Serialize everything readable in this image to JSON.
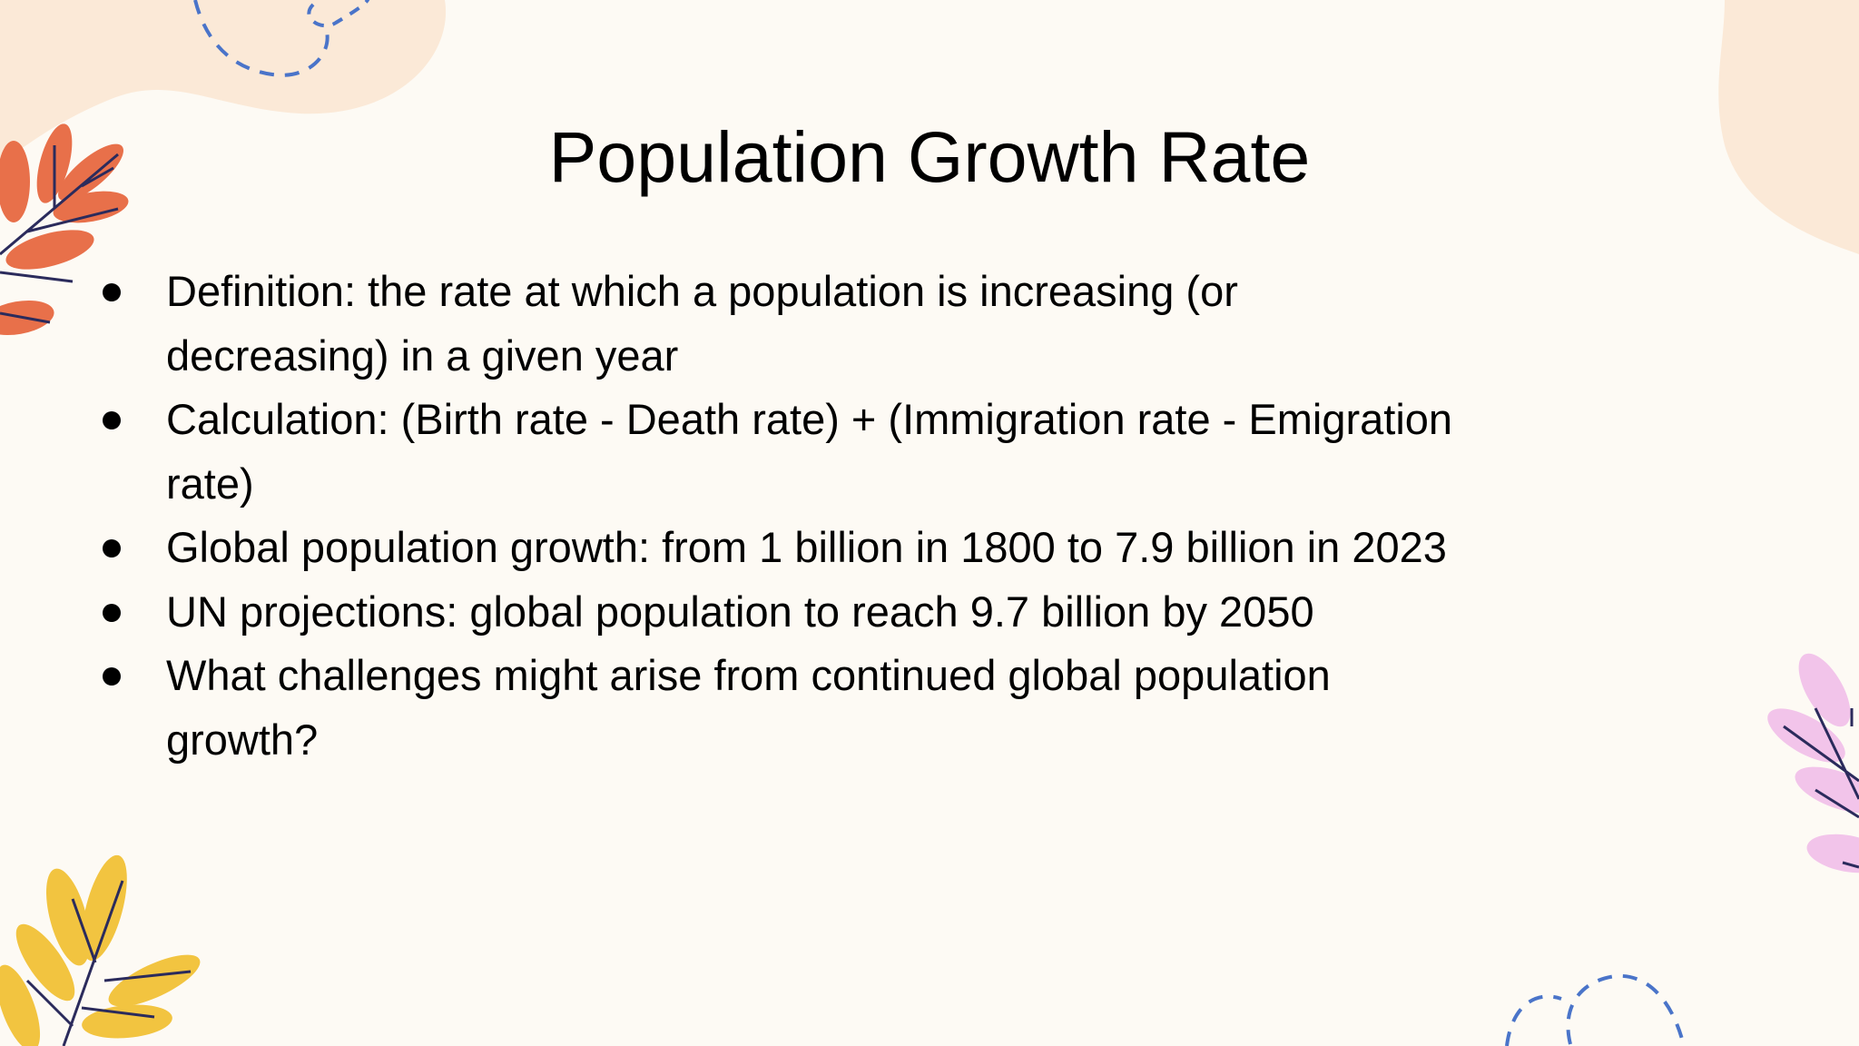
{
  "title": "Population Growth Rate",
  "bullets": [
    "Definition: the rate at which a population is increasing (or decreasing) in a given year",
    "Calculation: (Birth rate - Death rate) + (Immigration rate - Emigration rate)",
    "Global population growth: from 1 billion in 1800 to 7.9 billion in 2023",
    "UN projections: global population to reach 9.7 billion by 2050",
    "What challenges might arise from continued global population growth?"
  ]
}
